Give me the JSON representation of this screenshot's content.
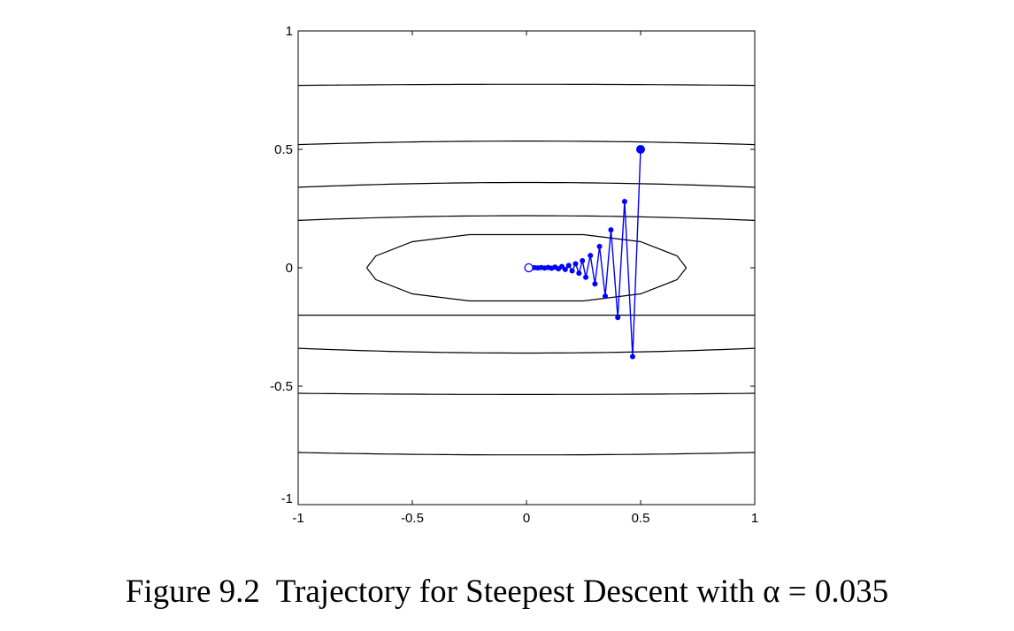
{
  "chart_data": {
    "type": "line",
    "title": "",
    "xlabel": "",
    "ylabel": "",
    "xlim": [
      -1,
      1
    ],
    "ylim": [
      -1,
      1
    ],
    "grid": false,
    "x_ticks": [
      -1,
      -0.5,
      0,
      0.5,
      1
    ],
    "y_ticks": [
      -1,
      -0.5,
      0,
      0.5,
      1
    ],
    "x_tick_labels": [
      "-1",
      "-0.5",
      "0",
      "0.5",
      "1"
    ],
    "y_tick_labels": [
      "-1",
      "-0.5",
      "0",
      "0.5",
      "1"
    ],
    "contours": {
      "outer_curve_center_y": [
        0.775,
        0.535,
        0.36,
        0.22,
        -0.2,
        -0.36,
        -0.535,
        -0.79
      ],
      "outer_curve_edge_y": [
        0.77,
        0.52,
        0.34,
        0.2,
        -0.2,
        -0.34,
        -0.53,
        -0.78
      ],
      "inner_ellipse": [
        [
          -0.7,
          0
        ],
        [
          -0.66,
          0.05
        ],
        [
          -0.5,
          0.11
        ],
        [
          -0.25,
          0.14
        ],
        [
          0,
          0.14
        ],
        [
          0.25,
          0.14
        ],
        [
          0.5,
          0.11
        ],
        [
          0.66,
          0.05
        ],
        [
          0.7,
          0
        ],
        [
          0.66,
          -0.05
        ],
        [
          0.5,
          -0.11
        ],
        [
          0.25,
          -0.14
        ],
        [
          0,
          -0.14
        ],
        [
          -0.25,
          -0.14
        ],
        [
          -0.5,
          -0.11
        ],
        [
          -0.66,
          -0.05
        ],
        [
          -0.7,
          0
        ]
      ]
    },
    "trajectory": {
      "color": "#0000ff",
      "start": [
        0.5,
        0.5
      ],
      "end": [
        0.01,
        0
      ],
      "points": [
        [
          0.5,
          0.5
        ],
        [
          0.465,
          -0.375
        ],
        [
          0.43,
          0.28
        ],
        [
          0.4,
          -0.21
        ],
        [
          0.37,
          0.16
        ],
        [
          0.345,
          -0.12
        ],
        [
          0.32,
          0.09
        ],
        [
          0.3,
          -0.068
        ],
        [
          0.28,
          0.052
        ],
        [
          0.26,
          -0.04
        ],
        [
          0.245,
          0.03
        ],
        [
          0.23,
          -0.023
        ],
        [
          0.215,
          0.017
        ],
        [
          0.2,
          -0.013
        ],
        [
          0.185,
          0.01
        ],
        [
          0.17,
          -0.007
        ],
        [
          0.155,
          0.005
        ],
        [
          0.14,
          -0.004
        ],
        [
          0.125,
          0.003
        ],
        [
          0.11,
          -0.002
        ],
        [
          0.095,
          0.0015
        ],
        [
          0.08,
          -0.001
        ],
        [
          0.065,
          0.0008
        ],
        [
          0.05,
          -0.0005
        ],
        [
          0.035,
          0.0003
        ],
        [
          0.02,
          0
        ],
        [
          0.01,
          0
        ]
      ]
    }
  },
  "caption": {
    "prefix": "Figure 9.2  Trajectory for Steepest Descent with ",
    "symbol": "α",
    "suffix": " = 0.035"
  }
}
